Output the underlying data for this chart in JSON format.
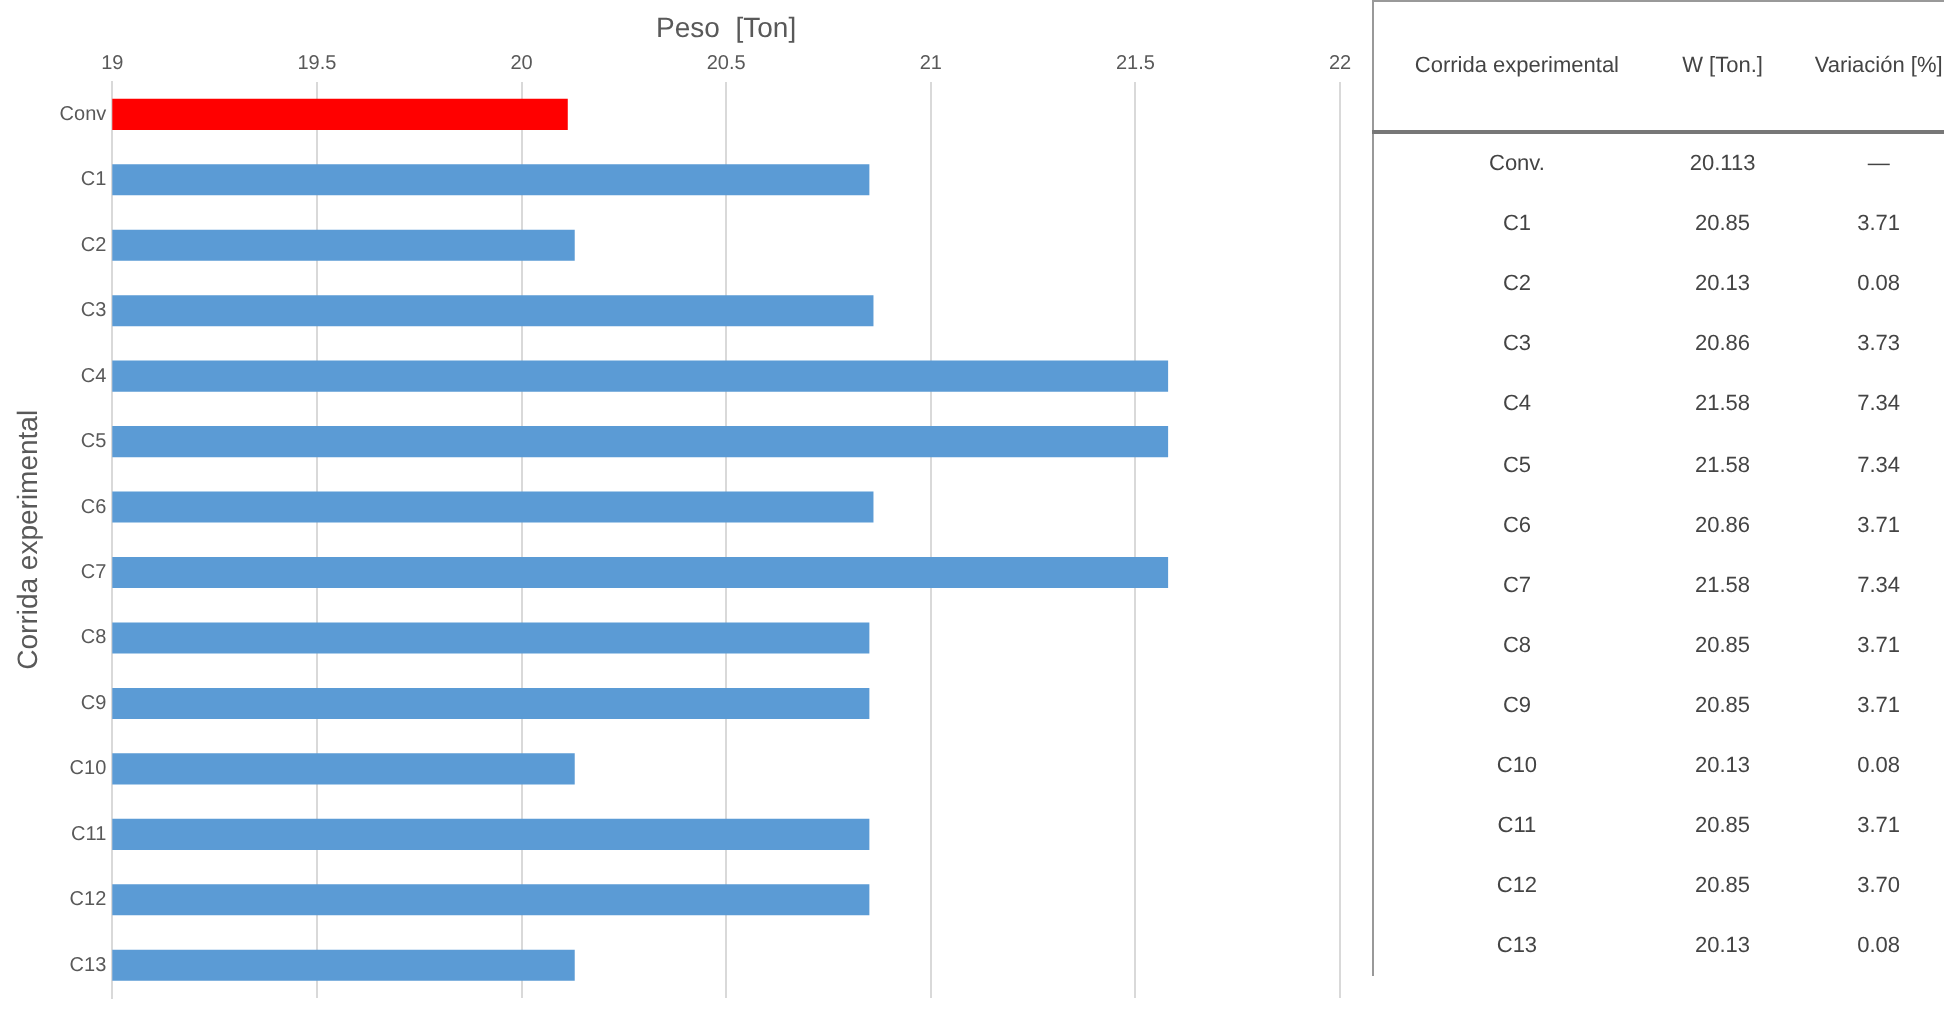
{
  "chart_data": {
    "type": "bar",
    "orientation": "horizontal",
    "xlabel": "Peso  [Ton]",
    "ylabel": "Corrida experimental",
    "categories": [
      "Conv",
      "C1",
      "C2",
      "C3",
      "C4",
      "C5",
      "C6",
      "C7",
      "C8",
      "C9",
      "C10",
      "C11",
      "C12",
      "C13"
    ],
    "values": [
      20.113,
      20.85,
      20.13,
      20.86,
      21.58,
      21.58,
      20.86,
      21.58,
      20.85,
      20.85,
      20.13,
      20.85,
      20.85,
      20.13
    ],
    "colors": [
      "#ff0000",
      "#5b9bd5",
      "#5b9bd5",
      "#5b9bd5",
      "#5b9bd5",
      "#5b9bd5",
      "#5b9bd5",
      "#5b9bd5",
      "#5b9bd5",
      "#5b9bd5",
      "#5b9bd5",
      "#5b9bd5",
      "#5b9bd5",
      "#5b9bd5"
    ],
    "value_labels": [
      "20.113",
      "20.85",
      "20.13",
      "20.86",
      "21.58",
      "21.58",
      "20.86",
      "21.58",
      "20.85",
      "20.85",
      "20.13",
      "20.85",
      "20.85",
      "20.13"
    ],
    "xlim": [
      19,
      22
    ],
    "xticks": [
      19,
      19.5,
      20,
      20.5,
      21,
      21.5,
      22
    ],
    "grid": "x",
    "legend": false,
    "annotations": [
      "Corrida experimental",
      "W [Ton.]",
      "Variación [%]",
      "Conv.",
      "—",
      "C1",
      "3.71",
      "C2",
      "0.08",
      "C3",
      "3.73",
      "C4",
      "7.34",
      "C5",
      "7.34",
      "C6",
      "3.71",
      "C7",
      "7.34",
      "C8",
      "3.71",
      "C9",
      "3.71",
      "C10",
      "0.08",
      "C11",
      "3.71",
      "C12",
      "3.70",
      "C13",
      "0.08"
    ]
  }
}
